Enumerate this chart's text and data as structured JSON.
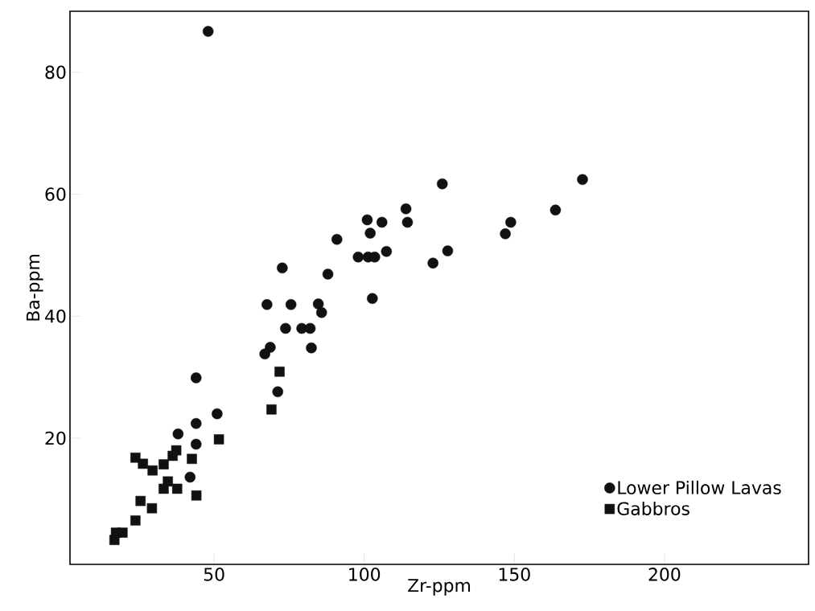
{
  "chart_data": {
    "type": "scatter",
    "xlabel": "Zr-ppm",
    "ylabel": "Ba-ppm",
    "xlim": [
      2,
      248
    ],
    "ylim": [
      -0.7,
      90
    ],
    "xticks": [
      50,
      100,
      150,
      200
    ],
    "yticks": [
      20,
      40,
      60,
      80
    ],
    "grid": false,
    "legend": "bottom right",
    "series": [
      {
        "name": "Lower Pillow Lavas",
        "color": "#111111",
        "marker": "circle",
        "x": [
          48,
          71.2,
          51,
          44,
          38,
          44,
          42,
          44,
          90.9,
          102,
          72.7,
          87.9,
          98,
          101.3,
          103.5,
          107.4,
          102.7,
          67.6,
          75.6,
          84.7,
          85.8,
          73.8,
          79.2,
          82,
          68.7,
          66.9,
          82.4,
          126,
          172.7,
          113.9,
          163.7,
          101,
          105.9,
          114.4,
          148.8,
          147,
          127.8,
          122.9
        ],
        "values": [
          86.7,
          27.6,
          24,
          22.4,
          20.7,
          19,
          13.6,
          29.9,
          52.6,
          53.6,
          47.9,
          46.9,
          49.7,
          49.7,
          49.7,
          50.6,
          42.9,
          41.9,
          41.9,
          42,
          40.6,
          38,
          38,
          38,
          34.9,
          33.8,
          34.8,
          61.7,
          62.4,
          57.6,
          57.4,
          55.8,
          55.4,
          55.4,
          55.4,
          53.5,
          50.7,
          48.7
        ]
      },
      {
        "name": "Gabbros",
        "color": "#111111",
        "marker": "square",
        "x": [
          69.1,
          71.8,
          51.6,
          23.8,
          26.3,
          29.5,
          33.2,
          36.2,
          37.4,
          42.6,
          34.6,
          33.2,
          37.7,
          44.1,
          25.5,
          29.3,
          23.8,
          19.5,
          17.3,
          16.8
        ],
        "values": [
          24.7,
          30.9,
          19.8,
          16.8,
          15.8,
          14.7,
          15.7,
          17.1,
          18,
          16.6,
          12.9,
          11.7,
          11.7,
          10.6,
          9.7,
          8.5,
          6.5,
          4.5,
          4.5,
          3.3
        ]
      }
    ]
  }
}
